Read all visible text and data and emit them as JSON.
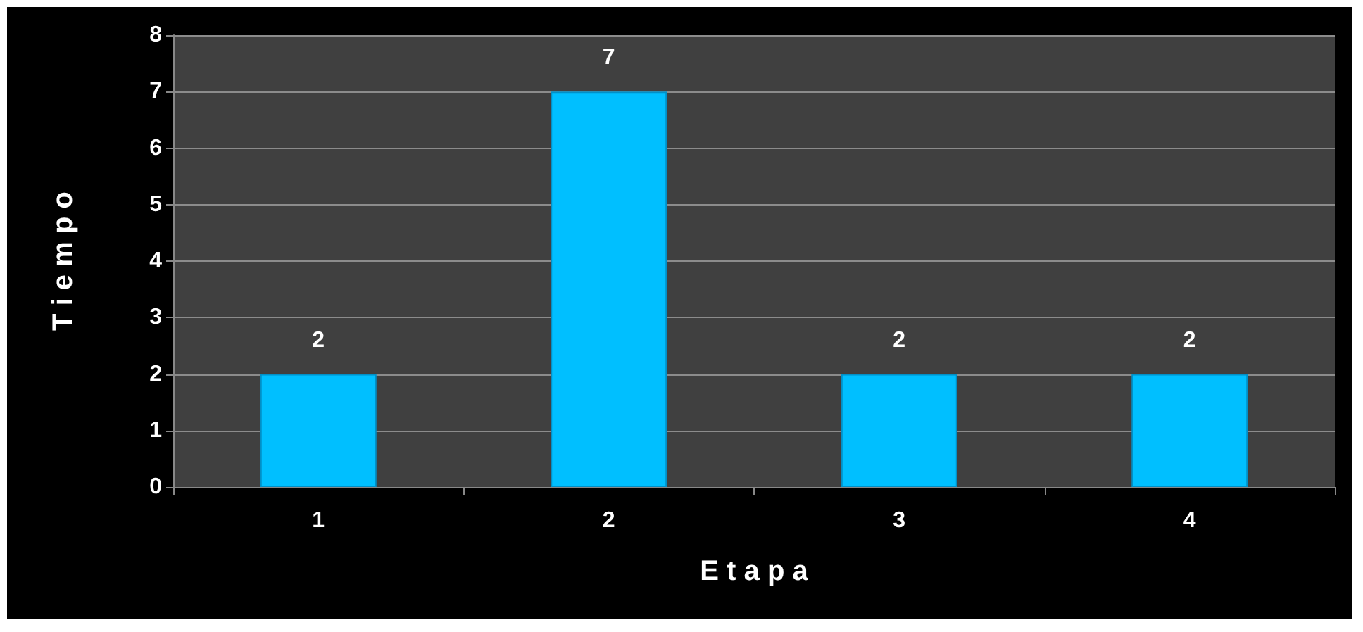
{
  "chart_data": {
    "type": "bar",
    "xlabel": "E t a p a",
    "ylabel": "T i e m p o",
    "categories": [
      "1",
      "2",
      "3",
      "4"
    ],
    "values": [
      2,
      7,
      2,
      2
    ],
    "color": "#00bfff",
    "ylim": [
      0,
      8
    ],
    "yticks": [
      0,
      1,
      2,
      3,
      4,
      5,
      6,
      7,
      8
    ],
    "grid": "y",
    "data_labels": true
  }
}
